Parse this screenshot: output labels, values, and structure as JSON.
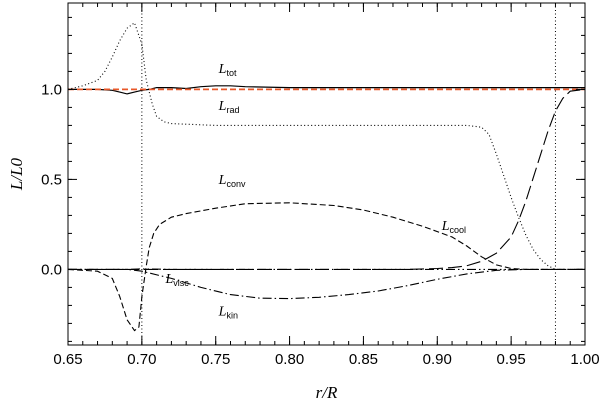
{
  "chart_data": {
    "type": "line",
    "title": "",
    "xlabel": "r/R",
    "ylabel": "L/L0",
    "xlim": [
      0.65,
      1.0
    ],
    "ylim": [
      -0.42,
      1.48
    ],
    "grid": false,
    "legend": "none",
    "x_ticks": [
      0.65,
      0.7,
      0.75,
      0.8,
      0.85,
      0.9,
      0.95,
      1.0
    ],
    "x_tick_labels": [
      "0.65",
      "0.70",
      "0.75",
      "0.80",
      "0.85",
      "0.90",
      "0.95",
      "1.00"
    ],
    "y_ticks": [
      0.0,
      0.5,
      1.0
    ],
    "y_tick_labels": [
      "0.0",
      "0.5",
      "1.0"
    ],
    "vertical_lines": [
      0.7,
      0.98
    ],
    "series": [
      {
        "key": "tot",
        "style": "solid",
        "color": "#000000",
        "points": [
          [
            0.65,
            1.0
          ],
          [
            0.67,
            1.0
          ],
          [
            0.68,
            0.995
          ],
          [
            0.685,
            0.985
          ],
          [
            0.69,
            0.975
          ],
          [
            0.695,
            0.985
          ],
          [
            0.7,
            0.995
          ],
          [
            0.705,
            1.0
          ],
          [
            0.71,
            1.01
          ],
          [
            0.72,
            1.01
          ],
          [
            0.73,
            1.005
          ],
          [
            0.74,
            1.015
          ],
          [
            0.75,
            1.02
          ],
          [
            0.76,
            1.02
          ],
          [
            0.77,
            1.015
          ],
          [
            0.8,
            1.01
          ],
          [
            0.85,
            1.01
          ],
          [
            0.9,
            1.01
          ],
          [
            0.95,
            1.01
          ],
          [
            0.98,
            1.01
          ],
          [
            1.0,
            1.01
          ]
        ]
      },
      {
        "key": "reference",
        "style": "dashed",
        "color": "#e8582a",
        "points": [
          [
            0.65,
            1.0
          ],
          [
            1.0,
            1.0
          ]
        ]
      },
      {
        "key": "rad",
        "style": "dotted",
        "color": "#000000",
        "points": [
          [
            0.65,
            1.0
          ],
          [
            0.66,
            1.02
          ],
          [
            0.67,
            1.05
          ],
          [
            0.675,
            1.1
          ],
          [
            0.68,
            1.18
          ],
          [
            0.685,
            1.27
          ],
          [
            0.69,
            1.34
          ],
          [
            0.695,
            1.37
          ],
          [
            0.7,
            1.25
          ],
          [
            0.703,
            1.05
          ],
          [
            0.707,
            0.92
          ],
          [
            0.71,
            0.85
          ],
          [
            0.715,
            0.82
          ],
          [
            0.72,
            0.81
          ],
          [
            0.75,
            0.8
          ],
          [
            0.8,
            0.8
          ],
          [
            0.85,
            0.8
          ],
          [
            0.9,
            0.8
          ],
          [
            0.92,
            0.8
          ],
          [
            0.93,
            0.79
          ],
          [
            0.935,
            0.75
          ],
          [
            0.94,
            0.64
          ],
          [
            0.945,
            0.52
          ],
          [
            0.95,
            0.4
          ],
          [
            0.955,
            0.29
          ],
          [
            0.96,
            0.19
          ],
          [
            0.965,
            0.11
          ],
          [
            0.97,
            0.055
          ],
          [
            0.975,
            0.02
          ],
          [
            0.98,
            0.0
          ],
          [
            1.0,
            0.0
          ]
        ]
      },
      {
        "key": "conv",
        "style": "dashed",
        "color": "#000000",
        "points": [
          [
            0.65,
            0.0
          ],
          [
            0.67,
            -0.01
          ],
          [
            0.68,
            -0.05
          ],
          [
            0.685,
            -0.15
          ],
          [
            0.69,
            -0.28
          ],
          [
            0.695,
            -0.34
          ],
          [
            0.698,
            -0.32
          ],
          [
            0.7,
            -0.15
          ],
          [
            0.703,
            0.02
          ],
          [
            0.705,
            0.12
          ],
          [
            0.708,
            0.2
          ],
          [
            0.712,
            0.25
          ],
          [
            0.72,
            0.29
          ],
          [
            0.73,
            0.31
          ],
          [
            0.75,
            0.34
          ],
          [
            0.77,
            0.365
          ],
          [
            0.8,
            0.37
          ],
          [
            0.83,
            0.355
          ],
          [
            0.85,
            0.33
          ],
          [
            0.87,
            0.29
          ],
          [
            0.89,
            0.24
          ],
          [
            0.91,
            0.18
          ],
          [
            0.92,
            0.13
          ],
          [
            0.93,
            0.07
          ],
          [
            0.94,
            0.025
          ],
          [
            0.95,
            0.005
          ],
          [
            0.96,
            0.0
          ],
          [
            1.0,
            0.0
          ]
        ]
      },
      {
        "key": "cool",
        "style": "longdash",
        "color": "#000000",
        "points": [
          [
            0.65,
            0.0
          ],
          [
            0.88,
            0.0
          ],
          [
            0.9,
            0.005
          ],
          [
            0.91,
            0.01
          ],
          [
            0.92,
            0.02
          ],
          [
            0.93,
            0.045
          ],
          [
            0.94,
            0.09
          ],
          [
            0.95,
            0.18
          ],
          [
            0.955,
            0.27
          ],
          [
            0.96,
            0.38
          ],
          [
            0.965,
            0.51
          ],
          [
            0.97,
            0.64
          ],
          [
            0.975,
            0.77
          ],
          [
            0.98,
            0.88
          ],
          [
            0.985,
            0.95
          ],
          [
            0.99,
            0.99
          ],
          [
            1.0,
            1.0
          ]
        ]
      },
      {
        "key": "kin",
        "style": "dashdot",
        "color": "#000000",
        "points": [
          [
            0.65,
            0.0
          ],
          [
            0.69,
            0.0
          ],
          [
            0.7,
            -0.01
          ],
          [
            0.72,
            -0.05
          ],
          [
            0.74,
            -0.1
          ],
          [
            0.76,
            -0.14
          ],
          [
            0.78,
            -0.16
          ],
          [
            0.8,
            -0.162
          ],
          [
            0.82,
            -0.155
          ],
          [
            0.84,
            -0.14
          ],
          [
            0.86,
            -0.12
          ],
          [
            0.88,
            -0.09
          ],
          [
            0.9,
            -0.055
          ],
          [
            0.92,
            -0.025
          ],
          [
            0.94,
            -0.005
          ],
          [
            0.96,
            0.0
          ],
          [
            1.0,
            0.0
          ]
        ]
      },
      {
        "key": "visc",
        "style": "dashdotdot",
        "color": "#000000",
        "points": [
          [
            0.65,
            0.0
          ],
          [
            0.69,
            0.0
          ],
          [
            0.7,
            0.003
          ],
          [
            0.72,
            0.0
          ],
          [
            0.8,
            0.0
          ],
          [
            0.9,
            0.0
          ],
          [
            1.0,
            0.0
          ]
        ]
      }
    ],
    "annotations": [
      {
        "key": "tot",
        "main": "L",
        "sub": "tot",
        "x": 0.752,
        "y": 1.09
      },
      {
        "key": "rad",
        "main": "L",
        "sub": "rad",
        "x": 0.752,
        "y": 0.885
      },
      {
        "key": "conv",
        "main": "L",
        "sub": "conv",
        "x": 0.752,
        "y": 0.475
      },
      {
        "key": "cool",
        "main": "L",
        "sub": "cool",
        "x": 0.903,
        "y": 0.22
      },
      {
        "key": "visc",
        "main": "L",
        "sub": "visc",
        "x": 0.716,
        "y": -0.075
      },
      {
        "key": "kin",
        "main": "L",
        "sub": "kin",
        "x": 0.752,
        "y": -0.255
      }
    ]
  }
}
